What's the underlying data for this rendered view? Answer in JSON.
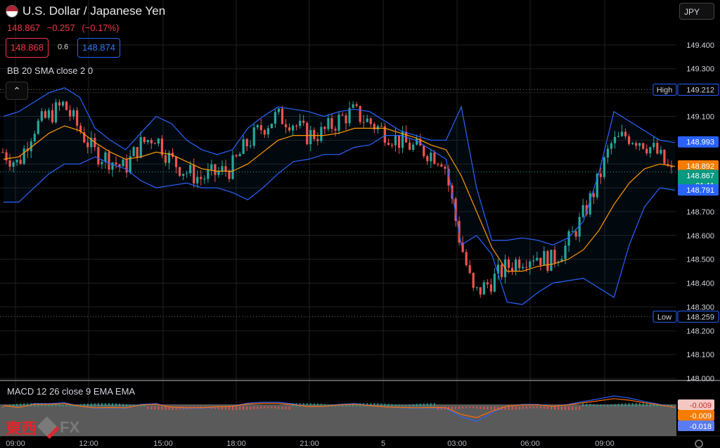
{
  "header": {
    "symbol_title": "U.S. Dollar / Japanese Yen",
    "last_price": "148.867",
    "change": "−0.257",
    "change_pct": "(−0.17%)",
    "bid": "148.868",
    "ask": "148.874",
    "spread": "0.6",
    "currency_button": "JPY",
    "bb_label": "BB 20 SMA close 2 0",
    "macd_label": "MACD 12 26 close 9 EMA EMA",
    "collapse_icon": "chevron-up-icon"
  },
  "logo": {
    "text_jp": "東西",
    "text_fx": "FX"
  },
  "colors": {
    "up": "#26a69a",
    "down": "#ef5350",
    "bb_band": "#2962ff",
    "bb_basis": "#ff9800",
    "macd_line": "#2962ff",
    "signal_line": "#ff6d00"
  },
  "chart_data": {
    "type": "candlestick",
    "title": "U.S. Dollar / Japanese Yen",
    "y_ticks": [
      "149.400",
      "149.300",
      "149.200",
      "149.100",
      "149.000",
      "148.900",
      "148.800",
      "148.700",
      "148.600",
      "148.500",
      "148.400",
      "148.300",
      "148.200",
      "148.100",
      "148.000"
    ],
    "ylim": [
      148.0,
      149.5
    ],
    "x_ticks": [
      "09:00",
      "12:00",
      "15:00",
      "18:00",
      "21:00",
      "5",
      "03:00",
      "06:00",
      "09:00"
    ],
    "price_labels": [
      {
        "name": "High",
        "value": "149.212",
        "kind": "high"
      },
      {
        "name": "",
        "value": "148.993",
        "kind": "bb_upper"
      },
      {
        "name": "",
        "value": "148.892",
        "kind": "bb_basis"
      },
      {
        "name": "",
        "value": "148.867",
        "kind": "last",
        "sub": "01:11"
      },
      {
        "name": "",
        "value": "148.791",
        "kind": "bb_lower"
      },
      {
        "name": "Low",
        "value": "148.259",
        "kind": "low"
      }
    ],
    "close_series_hourly": [
      148.95,
      148.9,
      149.05,
      149.1,
      149.15,
      149.05,
      148.95,
      148.92,
      148.88,
      148.98,
      149.02,
      148.92,
      148.87,
      148.84,
      148.86,
      148.88,
      148.98,
      149.05,
      149.1,
      149.08,
      149.02,
      149.03,
      149.08,
      149.12,
      149.08,
      149.04,
      149.0,
      148.97,
      148.95,
      148.92,
      148.6,
      148.35,
      148.4,
      148.46,
      148.5,
      148.52,
      148.49,
      148.55,
      148.66,
      148.8,
      148.98,
      149.02,
      149.0,
      148.95,
      148.86
    ],
    "bb_upper_hourly": [
      149.1,
      149.12,
      149.16,
      149.2,
      149.22,
      149.18,
      149.05,
      149.0,
      148.96,
      149.03,
      149.1,
      149.07,
      149.0,
      148.96,
      148.94,
      148.96,
      149.05,
      149.1,
      149.14,
      149.13,
      149.12,
      149.1,
      149.12,
      149.13,
      149.12,
      149.08,
      149.04,
      149.02,
      149.0,
      149.0,
      149.14,
      148.8,
      148.58,
      148.58,
      148.59,
      148.58,
      148.56,
      148.59,
      148.66,
      148.86,
      149.12,
      149.08,
      149.04,
      149.0,
      148.99
    ],
    "bb_basis_hourly": [
      148.92,
      148.93,
      148.98,
      149.03,
      149.06,
      149.04,
      148.99,
      148.95,
      148.92,
      148.93,
      148.95,
      148.94,
      148.91,
      148.88,
      148.87,
      148.87,
      148.9,
      148.95,
      149.0,
      149.02,
      149.02,
      149.02,
      149.03,
      149.05,
      149.05,
      149.05,
      149.03,
      149.01,
      148.98,
      148.96,
      148.85,
      148.7,
      148.55,
      148.45,
      148.45,
      148.47,
      148.48,
      148.5,
      148.54,
      148.62,
      148.73,
      148.82,
      148.88,
      148.9,
      148.89
    ],
    "bb_lower_hourly": [
      148.74,
      148.74,
      148.8,
      148.86,
      148.9,
      148.9,
      148.93,
      148.9,
      148.88,
      148.83,
      148.8,
      148.81,
      148.82,
      148.8,
      148.8,
      148.78,
      148.75,
      148.8,
      148.86,
      148.91,
      148.92,
      148.94,
      148.94,
      148.97,
      148.98,
      149.02,
      149.02,
      149.0,
      148.96,
      148.92,
      148.56,
      148.6,
      148.52,
      148.32,
      148.31,
      148.36,
      148.4,
      148.41,
      148.42,
      148.38,
      148.34,
      148.56,
      148.72,
      148.8,
      148.79
    ],
    "macd": {
      "label": "MACD 12 26 close 9 EMA EMA",
      "values": [
        "-0.009",
        "-0.009",
        "-0.018"
      ],
      "histogram_value": -0.009,
      "macd_value": -0.009,
      "signal_value": -0.018
    }
  }
}
